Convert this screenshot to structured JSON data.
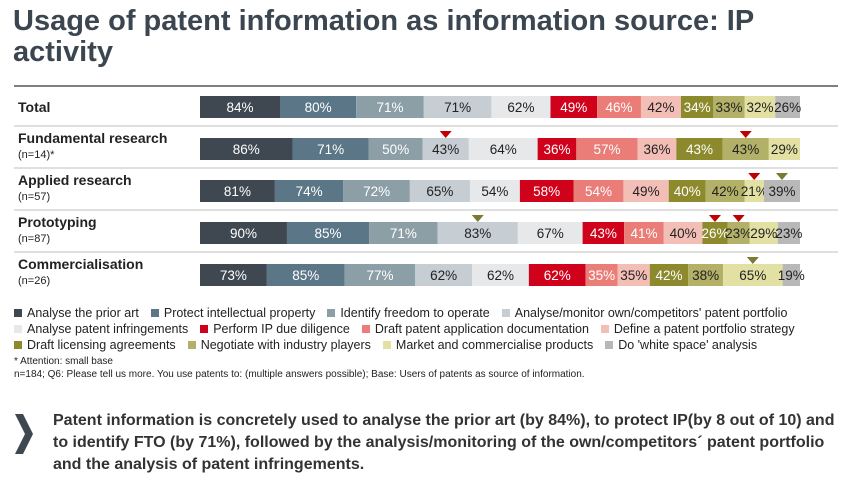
{
  "title": "Usage of patent information as information source: IP activity",
  "chart_data": {
    "type": "bar",
    "orientation": "horizontal",
    "layout": "side-by-side",
    "categories": [
      {
        "label": "Total",
        "sub": ""
      },
      {
        "label": "Fundamental research",
        "sub": "(n=14)*"
      },
      {
        "label": "Applied research",
        "sub": "(n=57)"
      },
      {
        "label": "Prototyping",
        "sub": "(n=87)"
      },
      {
        "label": "Commercialisation",
        "sub": "(n=26)"
      }
    ],
    "series": [
      {
        "name": "Analyse the prior art",
        "color": "#3f4750",
        "label_color": "#ffffff",
        "values": [
          84,
          86,
          81,
          90,
          73
        ]
      },
      {
        "name": "Protect intellectual property",
        "color": "#5b7687",
        "label_color": "#ffffff",
        "values": [
          80,
          71,
          74,
          85,
          85
        ]
      },
      {
        "name": "Identify freedom to operate",
        "color": "#8c9ea6",
        "label_color": "#ffffff",
        "values": [
          71,
          50,
          72,
          71,
          77
        ]
      },
      {
        "name": "Analyse/monitor own/competitors' patent portfolio",
        "color": "#c7ced3",
        "label_color": "#222222",
        "values": [
          71,
          43,
          65,
          83,
          62
        ]
      },
      {
        "name": "Analyse patent infringements",
        "color": "#e6e8ea",
        "label_color": "#222222",
        "values": [
          62,
          64,
          54,
          67,
          62
        ]
      },
      {
        "name": "Perform IP due diligence",
        "color": "#d0021b",
        "label_color": "#ffffff",
        "values": [
          49,
          36,
          58,
          43,
          62
        ]
      },
      {
        "name": "Draft patent application documentation",
        "color": "#ea7d78",
        "label_color": "#ffffff",
        "values": [
          46,
          57,
          54,
          41,
          35
        ]
      },
      {
        "name": "Define a patent portfolio strategy",
        "color": "#f2beb5",
        "label_color": "#222222",
        "values": [
          42,
          36,
          49,
          40,
          35
        ]
      },
      {
        "name": "Draft licensing agreements",
        "color": "#8c8a2c",
        "label_color": "#ffffff",
        "values": [
          34,
          43,
          40,
          26,
          42
        ]
      },
      {
        "name": "Negotiate with industry players",
        "color": "#b3b068",
        "label_color": "#222222",
        "values": [
          33,
          43,
          42,
          23,
          38
        ]
      },
      {
        "name": "Market and commercialise products",
        "color": "#e3e0a4",
        "label_color": "#222222",
        "values": [
          32,
          29,
          21,
          29,
          65
        ]
      },
      {
        "name": "Do 'white space' analysis",
        "color": "#b8b8b8",
        "label_color": "#222222",
        "values": [
          26,
          0,
          39,
          23,
          19
        ]
      }
    ],
    "value_suffix": "%",
    "markers": [
      {
        "row": 1,
        "series": 3,
        "direction": "down",
        "color": "#c00000"
      },
      {
        "row": 1,
        "series": 9,
        "direction": "down",
        "color": "#c00000"
      },
      {
        "row": 2,
        "series": 10,
        "direction": "down",
        "color": "#c00000"
      },
      {
        "row": 2,
        "series": 11,
        "direction": "down",
        "color": "#7a7a30"
      },
      {
        "row": 3,
        "series": 3,
        "direction": "down",
        "color": "#7a7a30"
      },
      {
        "row": 3,
        "series": 8,
        "direction": "down",
        "color": "#c00000"
      },
      {
        "row": 3,
        "series": 9,
        "direction": "down",
        "color": "#c00000"
      },
      {
        "row": 4,
        "series": 10,
        "direction": "down",
        "color": "#7a7a30"
      }
    ],
    "legend_position": "bottom"
  },
  "notes": {
    "attention": "* Attention: small base",
    "source": "n=184; Q6: Please tell us more. You use patents to: (multiple answers possible); Base: Users of patents as source of information."
  },
  "conclusion": "Patent information is concretely used to analyse the prior art (by 84%), to protect IP(by 8 out of 10) and to identify FTO (by 71%), followed by the analysis/monitoring of the own/competitors´ patent portfolio and the analysis of patent infringements."
}
